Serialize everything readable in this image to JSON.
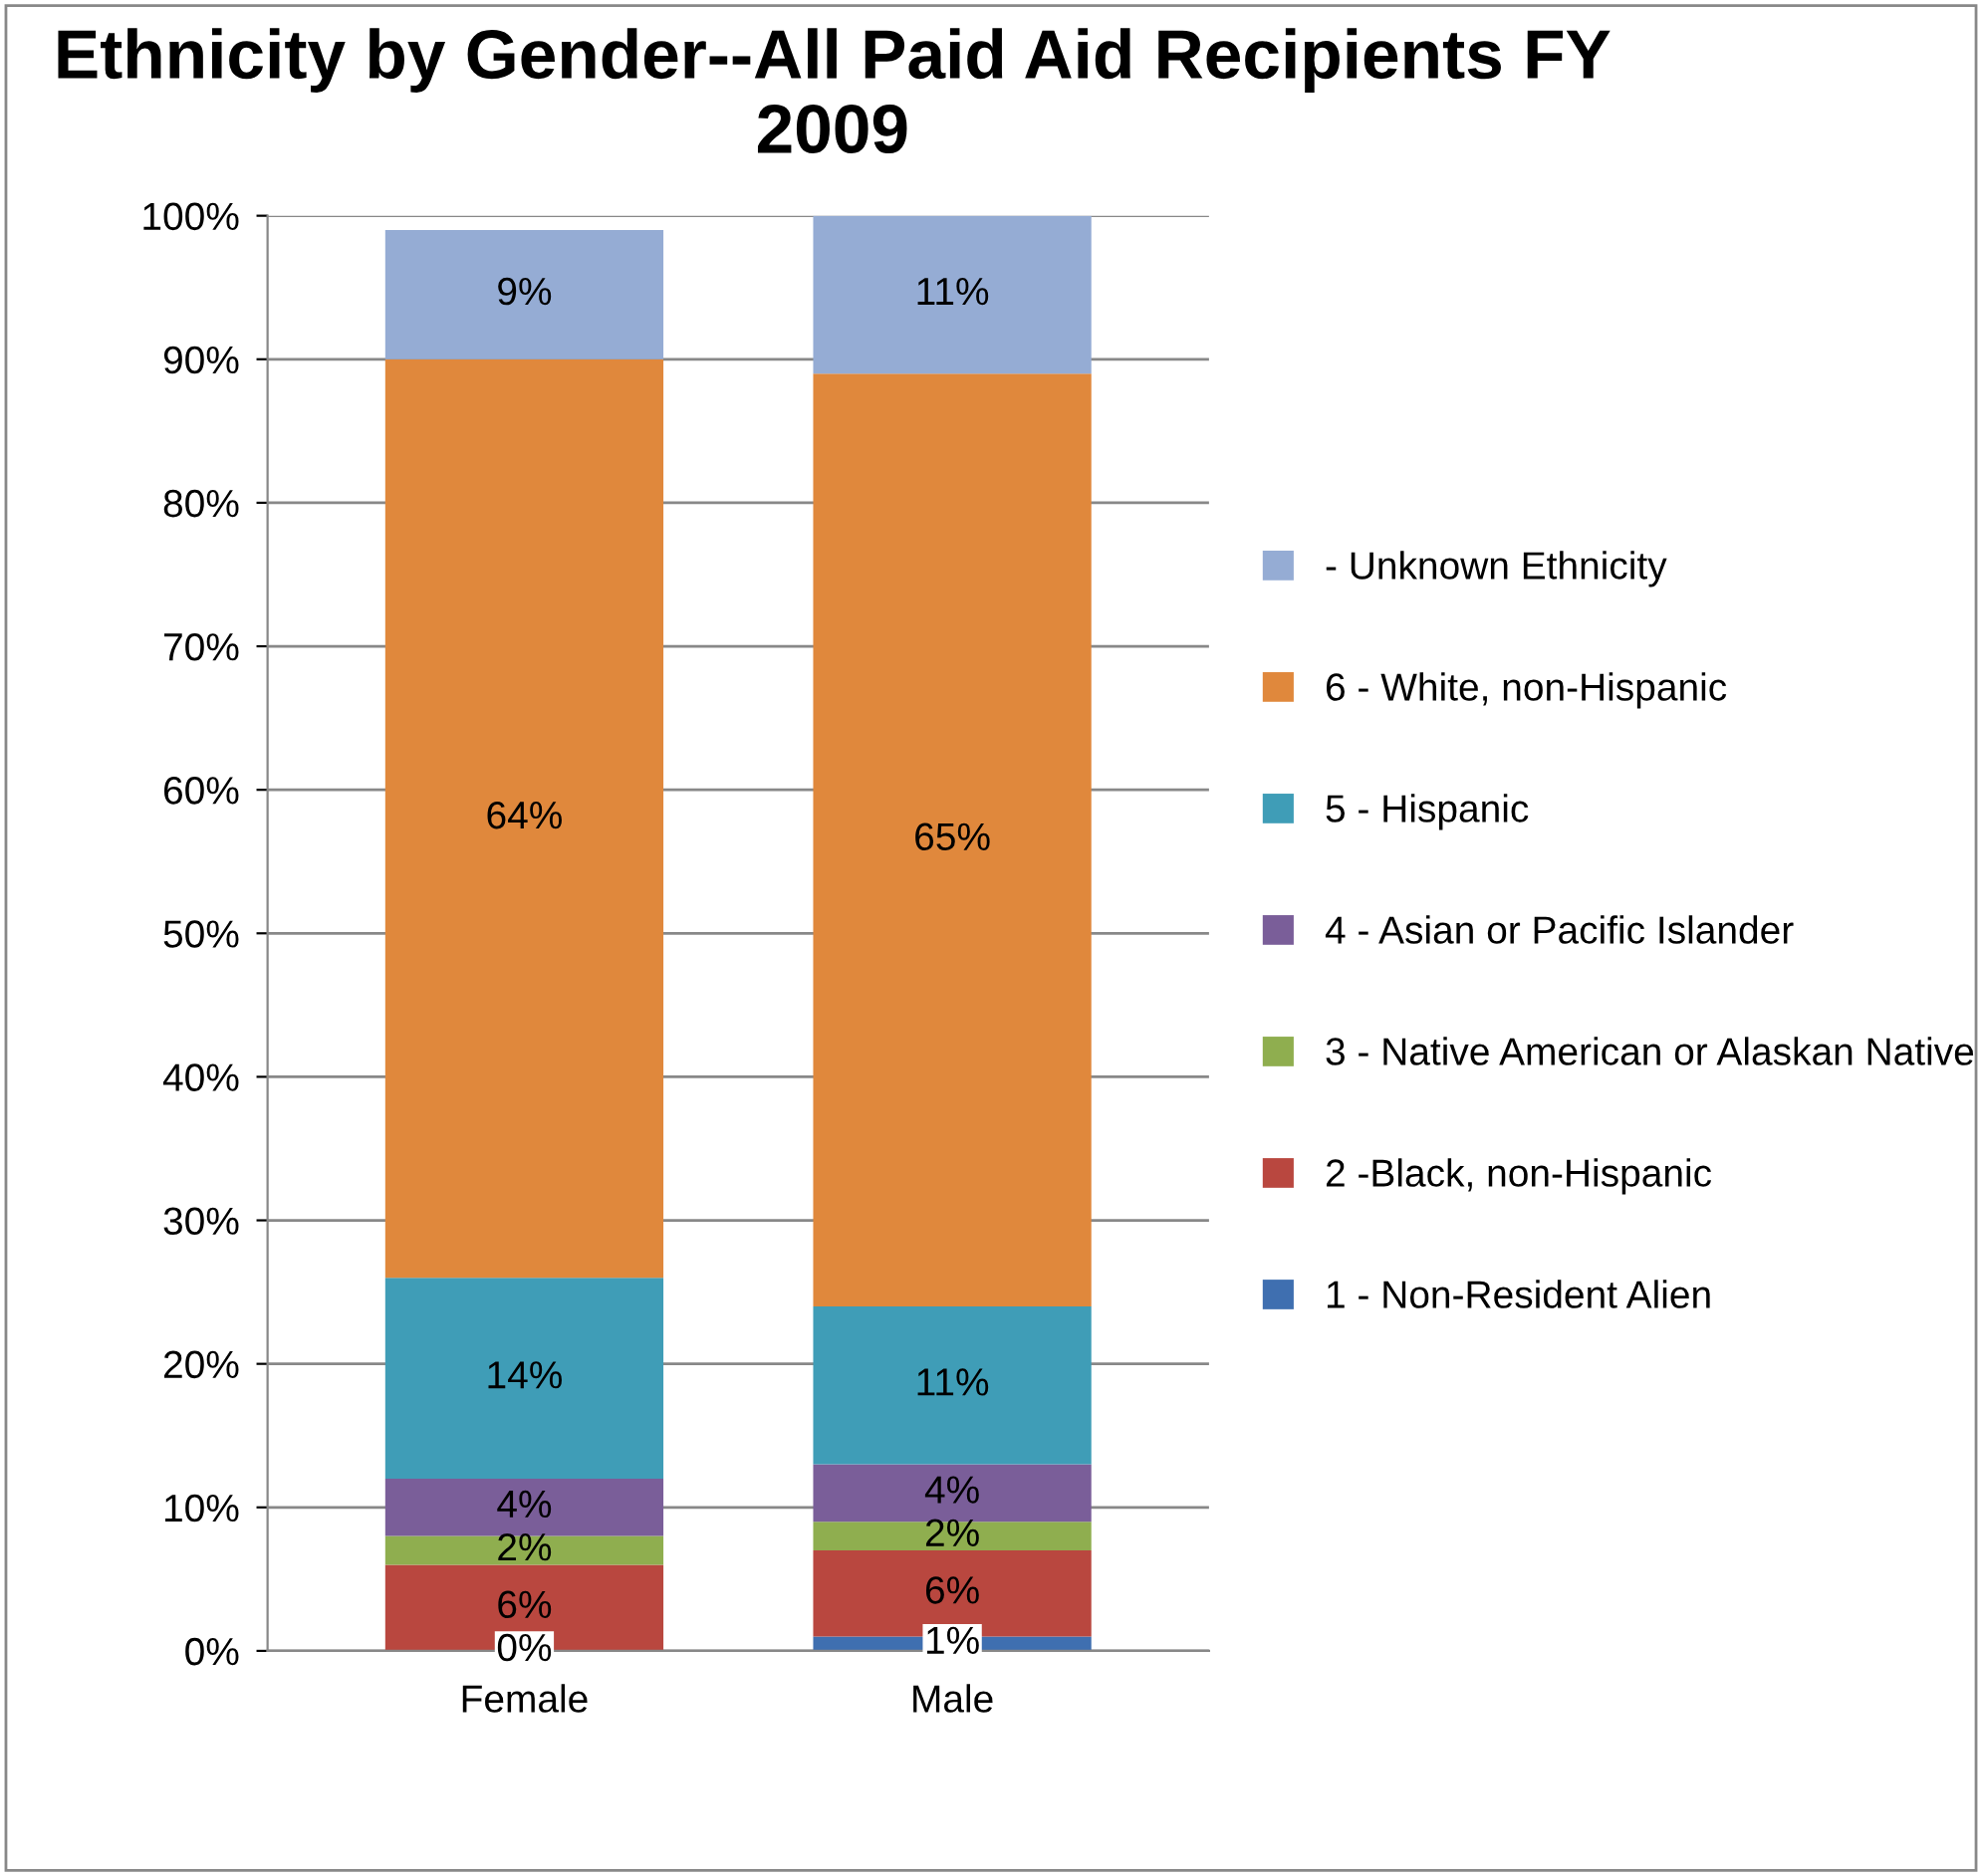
{
  "chart_data": {
    "type": "bar",
    "stacked": true,
    "title": "Ethnicity by Gender--All Paid Aid Recipients FY 2009",
    "categories": [
      "Female",
      "Male"
    ],
    "series": [
      {
        "name": "1 - Non-Resident Alien",
        "color": "#3f6fb0",
        "values": [
          0,
          1
        ]
      },
      {
        "name": "2 -Black, non-Hispanic",
        "color": "#b9473f",
        "values": [
          6,
          6
        ]
      },
      {
        "name": "3 - Native American or Alaskan Native",
        "color": "#8fae4f",
        "values": [
          2,
          2
        ]
      },
      {
        "name": "4 - Asian or Pacific Islander",
        "color": "#7a5e99",
        "values": [
          4,
          4
        ]
      },
      {
        "name": "5 - Hispanic",
        "color": "#3f9db7",
        "values": [
          14,
          11
        ]
      },
      {
        "name": "6 - White, non-Hispanic",
        "color": "#e0883c",
        "values": [
          64,
          65
        ]
      },
      {
        "name": "- Unknown Ethnicity",
        "color": "#95acd4",
        "values": [
          9,
          11
        ]
      }
    ],
    "ylim": [
      0,
      100
    ],
    "yticks": [
      {
        "value": 0,
        "label": "0%"
      },
      {
        "value": 10,
        "label": "10%"
      },
      {
        "value": 20,
        "label": "20%"
      },
      {
        "value": 30,
        "label": "30%"
      },
      {
        "value": 40,
        "label": "40%"
      },
      {
        "value": 50,
        "label": "50%"
      },
      {
        "value": 60,
        "label": "60%"
      },
      {
        "value": 70,
        "label": "70%"
      },
      {
        "value": 80,
        "label": "80%"
      },
      {
        "value": 90,
        "label": "90%"
      },
      {
        "value": 100,
        "label": "100%"
      }
    ],
    "value_labels": [
      [
        "0%",
        "1%"
      ],
      [
        "6%",
        "6%"
      ],
      [
        "2%",
        "2%"
      ],
      [
        "4%",
        "4%"
      ],
      [
        "14%",
        "11%"
      ],
      [
        "64%",
        "65%"
      ],
      [
        "9%",
        "11%"
      ]
    ],
    "grid": "y",
    "legend": "right"
  }
}
